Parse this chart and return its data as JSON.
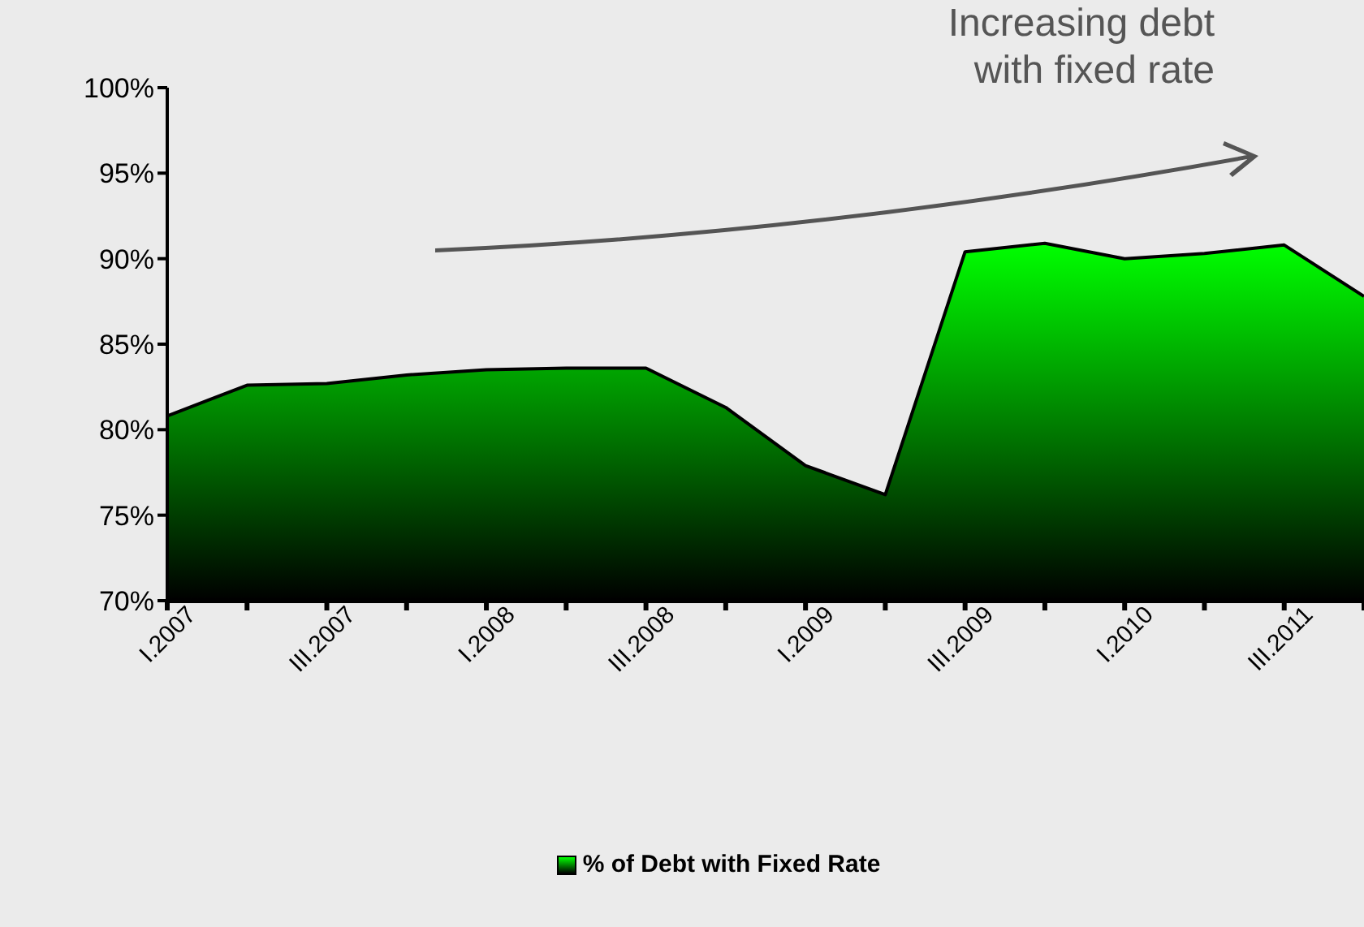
{
  "chart_data": {
    "type": "area",
    "categories": [
      "I.2007",
      null,
      "III.2007",
      null,
      "I.2008",
      null,
      "III.2008",
      null,
      "I.2009",
      null,
      "III.2009",
      null,
      "I.2010",
      null,
      "III.2011",
      null
    ],
    "series": [
      {
        "name": "% of Debt with Fixed Rate",
        "color": "#00ff00",
        "values": [
          80.8,
          82.6,
          82.7,
          83.2,
          83.5,
          83.6,
          83.6,
          81.3,
          77.9,
          76.2,
          90.4,
          90.9,
          90.0,
          90.3,
          90.8,
          87.8
        ]
      }
    ],
    "ylim": [
      70,
      100
    ],
    "yticks": [
      {
        "value": 70,
        "label": "70%"
      },
      {
        "value": 75,
        "label": "75%"
      },
      {
        "value": 80,
        "label": "80%"
      },
      {
        "value": 85,
        "label": "85%"
      },
      {
        "value": 90,
        "label": "90%"
      },
      {
        "value": 95,
        "label": "95%"
      },
      {
        "value": 100,
        "label": "100%"
      }
    ],
    "annotations": [
      "Increasing debt\nwith fixed rate"
    ],
    "legend": "bottom",
    "grid": false
  }
}
